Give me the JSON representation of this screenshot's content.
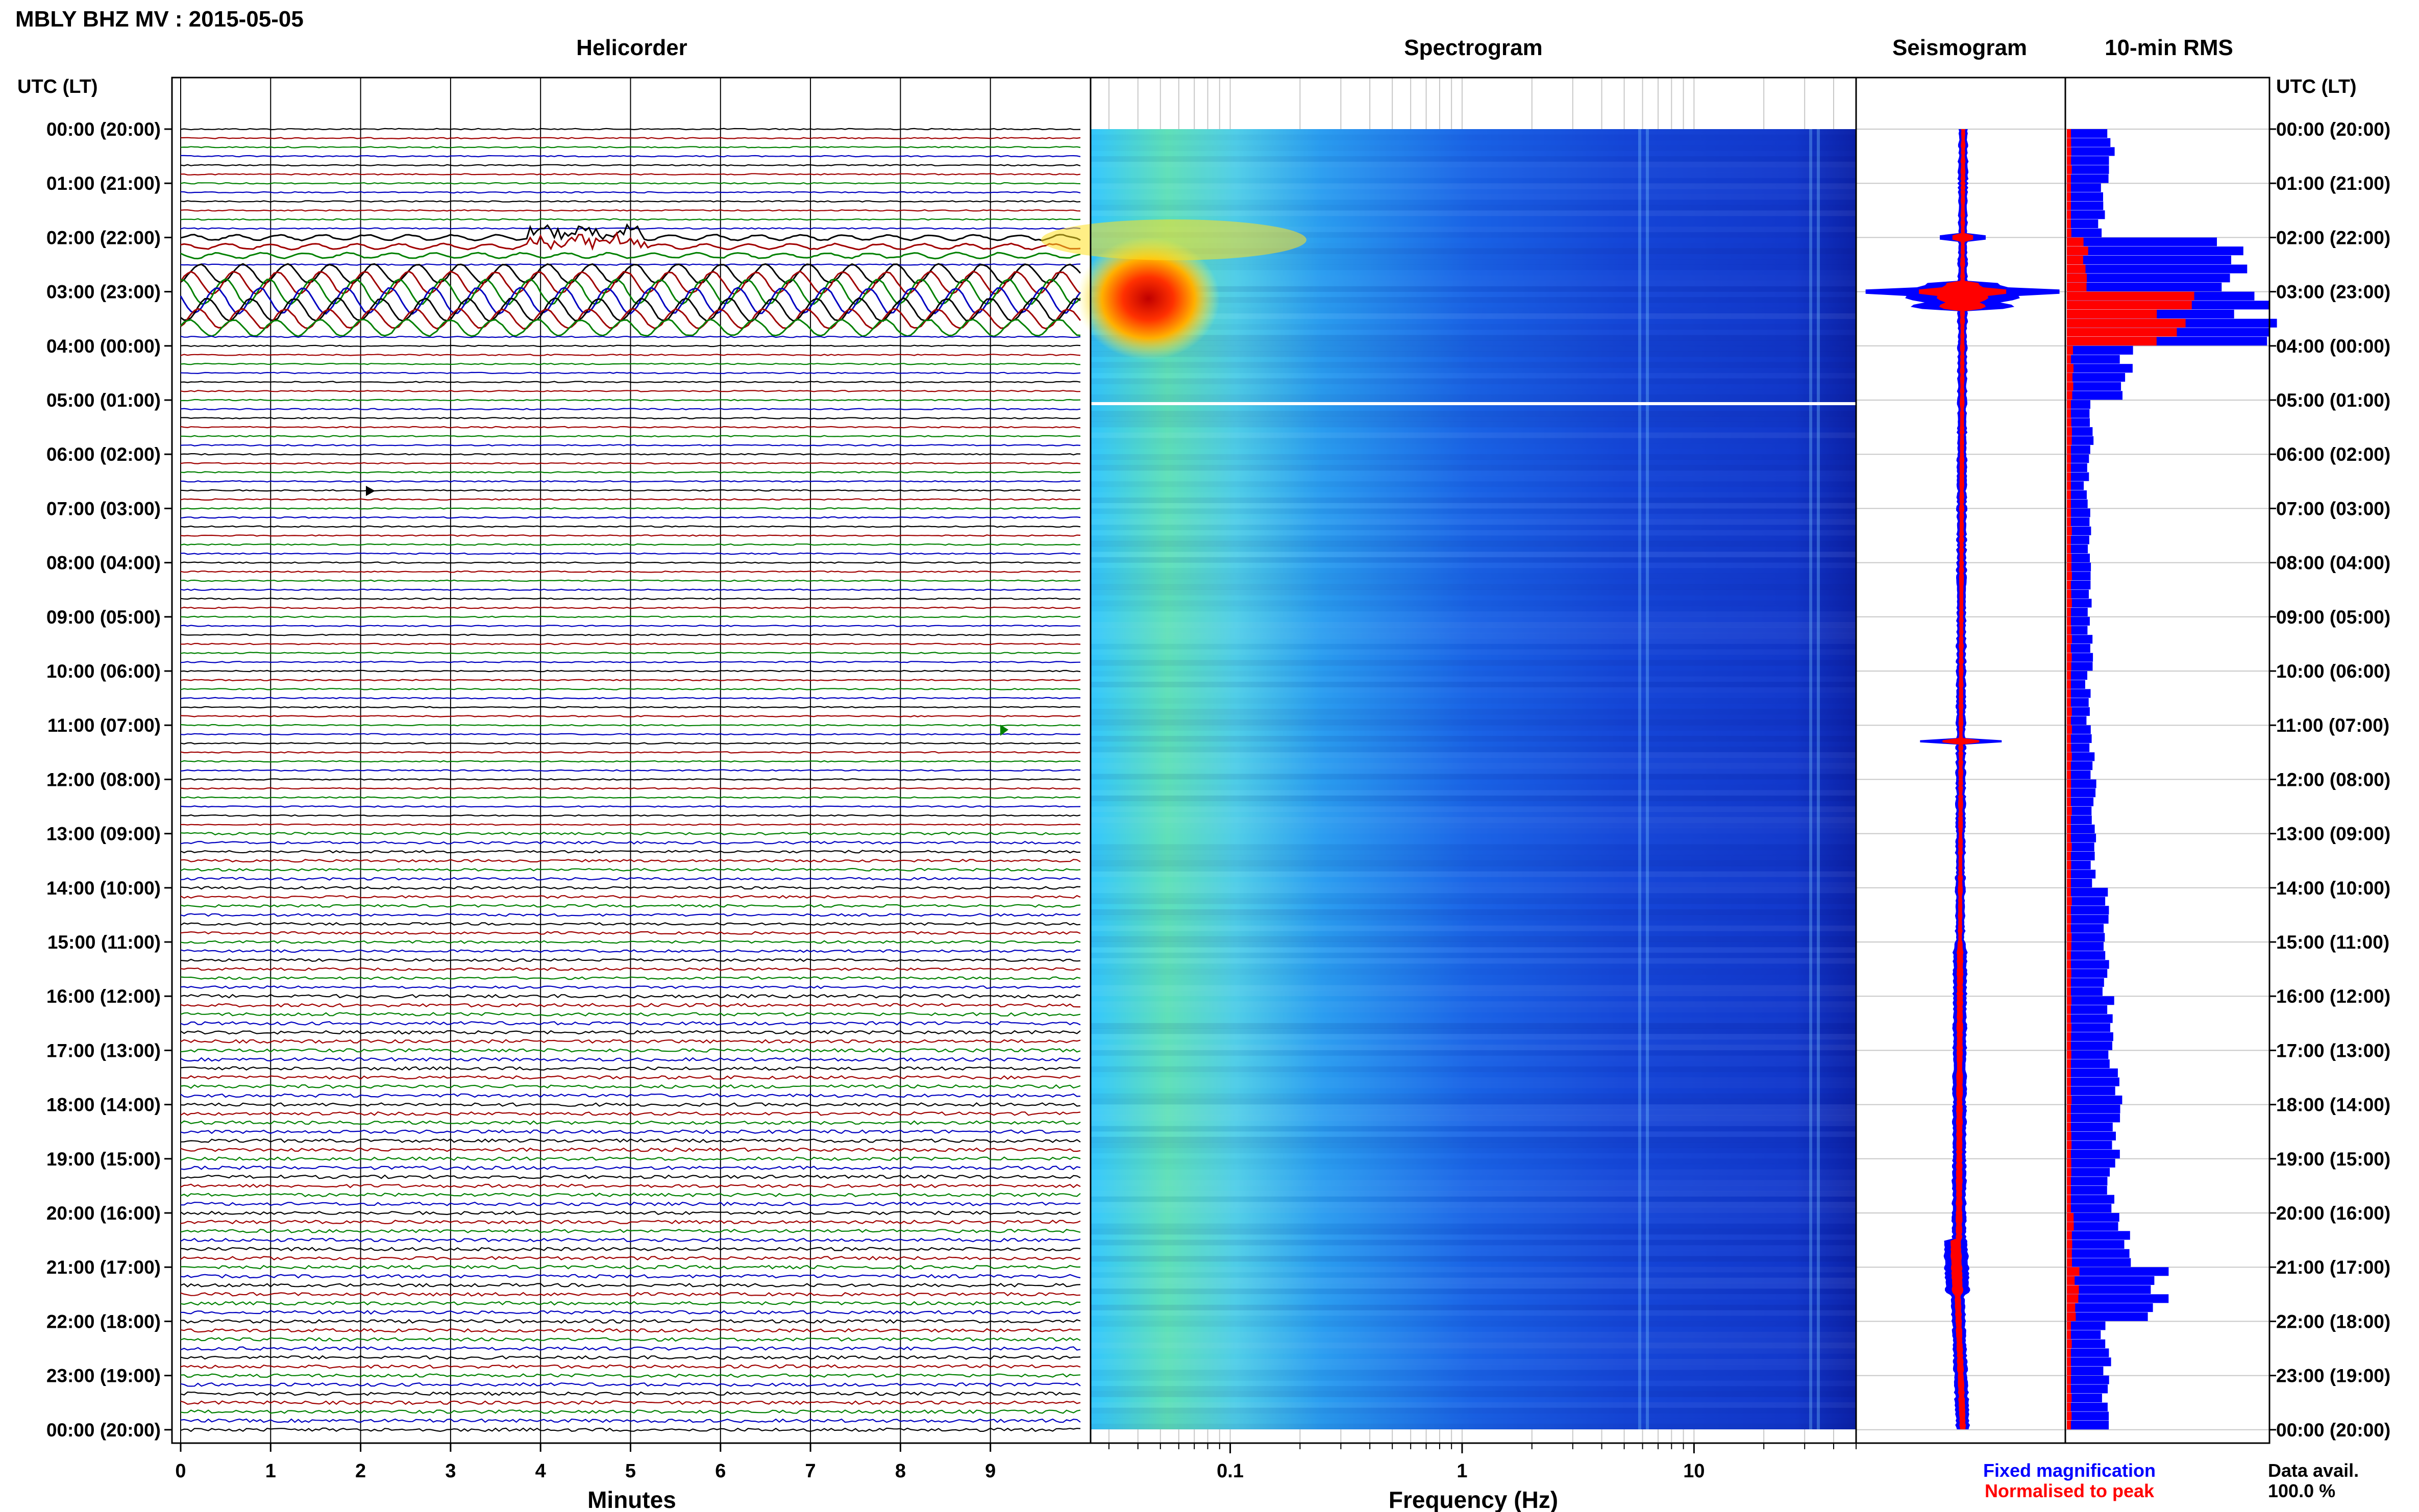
{
  "header": {
    "station_title": "MBLY BHZ MV : 2015-05-05",
    "axis_caption_left": "UTC (LT)",
    "axis_caption_right": "UTC (LT)"
  },
  "panels": {
    "helicorder": "Helicorder",
    "spectrogram": "Spectrogram",
    "seismogram": "Seismogram",
    "rms": "10-min RMS"
  },
  "time_labels": [
    "00:00 (20:00)",
    "01:00 (21:00)",
    "02:00 (22:00)",
    "03:00 (23:00)",
    "04:00 (00:00)",
    "05:00 (01:00)",
    "06:00 (02:00)",
    "07:00 (03:00)",
    "08:00 (04:00)",
    "09:00 (05:00)",
    "10:00 (06:00)",
    "11:00 (07:00)",
    "12:00 (08:00)",
    "13:00 (09:00)",
    "14:00 (10:00)",
    "15:00 (11:00)",
    "16:00 (12:00)",
    "17:00 (13:00)",
    "18:00 (14:00)",
    "19:00 (15:00)",
    "20:00 (16:00)",
    "21:00 (17:00)",
    "22:00 (18:00)",
    "23:00 (19:00)",
    "00:00 (20:00)"
  ],
  "legend": {
    "fixed": "Fixed magnification",
    "normalised": "Normalised to peak",
    "data_avail_label": "Data avail.",
    "data_avail_value": "100.0 %",
    "fixed_color": "#0000ff",
    "normalised_color": "#ff0000"
  },
  "chart_data": [
    {
      "type": "line",
      "title": "Helicorder",
      "xlabel": "Minutes",
      "xticks": [
        "0",
        "1",
        "2",
        "3",
        "4",
        "5",
        "6",
        "7",
        "8",
        "9"
      ],
      "xlim": [
        0,
        10
      ],
      "rows_per_hour": 6,
      "trace_colors": [
        "#000000",
        "#a00000",
        "#008000",
        "#0000c0"
      ],
      "events": [
        {
          "time_utc": "02:00-02:10",
          "note": "spike near 3.8-4 min"
        },
        {
          "time_utc": "02:50-03:40",
          "note": "large long-period oscillation"
        },
        {
          "time_utc": "06:30",
          "note": "spike near 2.1 min"
        },
        {
          "time_utc": "11:00",
          "note": "spike near 9.1 min"
        }
      ]
    },
    {
      "type": "heatmap",
      "title": "Spectrogram",
      "xlabel": "Frequency (Hz)",
      "xscale": "log",
      "xlim": [
        0.025,
        50
      ],
      "xticks": [
        "0.1",
        "1",
        "10"
      ],
      "colormap": "jet",
      "features": [
        {
          "time_utc": "02:50-03:30",
          "freq_hz": [
            0.025,
            0.08
          ],
          "level": "high"
        },
        {
          "time_utc": "05:00",
          "note": "data gap line"
        }
      ]
    },
    {
      "type": "line",
      "title": "Seismogram",
      "series": [
        {
          "name": "Fixed magnification",
          "color": "#0000ff"
        },
        {
          "name": "Normalised to peak",
          "color": "#ff0000"
        }
      ]
    },
    {
      "type": "bar",
      "title": "10-min RMS",
      "orientation": "horizontal",
      "bin_minutes": 10,
      "series": [
        {
          "name": "Fixed magnification",
          "color": "#0000ff",
          "hourly_values": [
            0.22,
            0.18,
            0.85,
            1.0,
            0.3,
            0.12,
            0.1,
            0.11,
            0.12,
            0.12,
            0.11,
            0.13,
            0.14,
            0.14,
            0.2,
            0.19,
            0.22,
            0.25,
            0.24,
            0.22,
            0.3,
            0.48,
            0.2,
            0.19
          ]
        },
        {
          "name": "Normalised to peak",
          "color": "#ff0000",
          "hourly_values": [
            0.02,
            0.02,
            0.1,
            0.55,
            0.03,
            0.02,
            0.02,
            0.02,
            0.02,
            0.02,
            0.02,
            0.02,
            0.02,
            0.02,
            0.02,
            0.02,
            0.02,
            0.02,
            0.02,
            0.02,
            0.03,
            0.05,
            0.02,
            0.02
          ]
        }
      ]
    }
  ]
}
